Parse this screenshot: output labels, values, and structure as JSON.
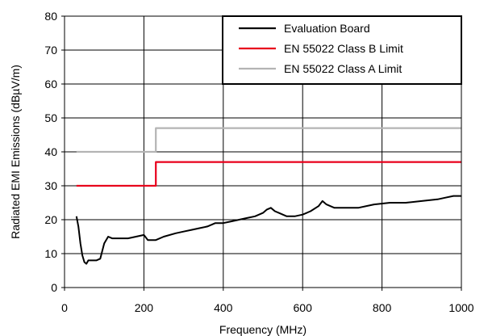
{
  "chart_data": {
    "type": "line",
    "title": "",
    "xlabel": "Frequency (MHz)",
    "ylabel": "Radiated EMI Emissions (dBµV/m)",
    "xlim": [
      0,
      1000
    ],
    "ylim": [
      0,
      80
    ],
    "x_ticks": [
      0,
      200,
      400,
      600,
      800,
      1000
    ],
    "y_ticks": [
      0,
      10,
      20,
      30,
      40,
      50,
      60,
      70,
      80
    ],
    "grid": true,
    "legend_position": "top-right",
    "series": [
      {
        "name": "Evaluation Board",
        "color": "#000000",
        "x": [
          30,
          35,
          40,
          45,
          50,
          55,
          60,
          70,
          80,
          90,
          100,
          110,
          120,
          140,
          160,
          180,
          200,
          210,
          220,
          230,
          250,
          280,
          300,
          320,
          340,
          360,
          380,
          400,
          420,
          440,
          460,
          480,
          500,
          510,
          520,
          530,
          540,
          560,
          580,
          600,
          620,
          640,
          650,
          660,
          680,
          700,
          740,
          780,
          820,
          860,
          900,
          940,
          960,
          980,
          1000
        ],
        "y": [
          21,
          18,
          13,
          9.5,
          7.5,
          7,
          8,
          8,
          8,
          8.5,
          13,
          15,
          14.5,
          14.5,
          14.5,
          15,
          15.5,
          14,
          14,
          14,
          15,
          16,
          16.5,
          17,
          17.5,
          18,
          19,
          19,
          19.5,
          20,
          20.5,
          21,
          22,
          23,
          23.5,
          22.5,
          22,
          21,
          21,
          21.5,
          22.5,
          24,
          25.5,
          24.5,
          23.5,
          23.5,
          23.5,
          24.5,
          25,
          25,
          25.5,
          26,
          26.5,
          27,
          27
        ]
      },
      {
        "name": "EN 55022 Class B Limit",
        "color": "#e8001c",
        "x": [
          30,
          230,
          230,
          1000
        ],
        "y": [
          30,
          30,
          37,
          37
        ]
      },
      {
        "name": "EN 55022 Class A Limit",
        "color": "#b4b4b4",
        "x": [
          30,
          230,
          230,
          1000
        ],
        "y": [
          40,
          40,
          47,
          47
        ]
      }
    ]
  }
}
